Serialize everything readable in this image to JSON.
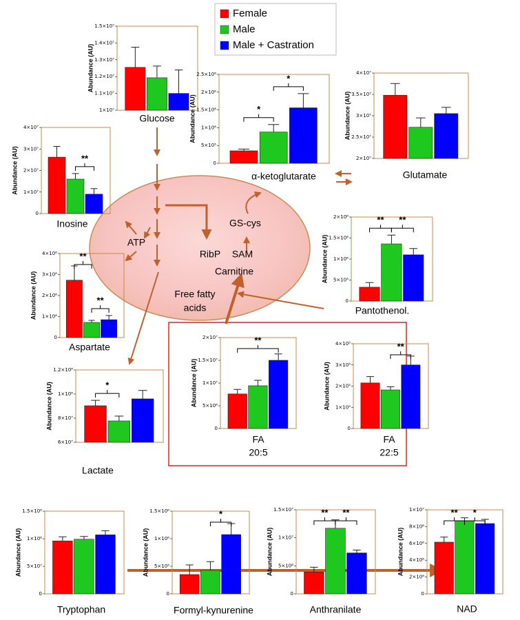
{
  "legend": [
    {
      "name": "Female",
      "color": "#ff0000"
    },
    {
      "name": "Male",
      "color": "#1ec81e"
    },
    {
      "name": "Male + Castration",
      "color": "#0000ff"
    }
  ],
  "chart_data": [
    {
      "type": "bar",
      "title": "Glucose",
      "ylabel": "Abundance (AU)",
      "values": [
        12550000,
        11930000,
        11000000
      ],
      "errors": [
        1200000,
        700000,
        1400000
      ],
      "ylim": [
        10000000,
        15000000
      ],
      "yticks": [
        {
          "value": 10000000,
          "label": "1×10⁷"
        },
        {
          "value": 11000000,
          "label": "1.1×10⁷"
        },
        {
          "value": 12000000,
          "label": "1.2×10⁷"
        },
        {
          "value": 13000000,
          "label": "1.3×10⁷"
        },
        {
          "value": 14000000,
          "label": "1.4×10⁷"
        },
        {
          "value": 15000000,
          "label": "1.5×10⁷"
        }
      ],
      "significance": []
    },
    {
      "type": "bar",
      "title": "α-ketoglutarate",
      "ylabel": "Abundance (AU)",
      "values": [
        350000,
        880000,
        1560000
      ],
      "errors": [
        50000,
        210000,
        400000
      ],
      "ylim": [
        0,
        2500000
      ],
      "yticks": [
        0,
        {
          "value": 500000,
          "label": "5×10⁵"
        },
        {
          "value": 1000000,
          "label": "1×10⁶"
        },
        {
          "value": 1500000,
          "label": "1.5×10⁶"
        },
        {
          "value": 2000000,
          "label": "2×10⁶"
        },
        {
          "value": 2500000,
          "label": "2.5×10⁶"
        }
      ],
      "significance": [
        {
          "label": "*",
          "pair": [
            0,
            1
          ]
        },
        {
          "label": "*",
          "pair": [
            1,
            2
          ]
        }
      ]
    },
    {
      "type": "bar",
      "title": "Glutamate",
      "ylabel": "Abundance (AU)",
      "values": [
        34800000,
        27300000,
        30500000
      ],
      "errors": [
        2750000,
        2200000,
        1450000
      ],
      "ylim": [
        20000000,
        40000000
      ],
      "yticks": [
        {
          "value": 20000000,
          "label": "2×10⁷"
        },
        {
          "value": 25000000,
          "label": "2.5×10⁷"
        },
        {
          "value": 30000000,
          "label": "3×10⁷"
        },
        {
          "value": 35000000,
          "label": "3.5×10⁷"
        },
        {
          "value": 40000000,
          "label": "4×10⁷"
        }
      ],
      "significance": []
    },
    {
      "type": "bar",
      "title": "Inosine",
      "ylabel": "Abundance (AU)",
      "values": [
        26200000,
        16000000,
        9000000
      ],
      "errors": [
        5000000,
        2600000,
        2600000
      ],
      "ylim": [
        0,
        40000000
      ],
      "yticks": [
        0,
        {
          "value": 10000000,
          "label": "1×10⁷"
        },
        {
          "value": 20000000,
          "label": "2×10⁷"
        },
        {
          "value": 30000000,
          "label": "3×10⁷"
        },
        {
          "value": 40000000,
          "label": "4×10⁷"
        }
      ],
      "significance": [
        {
          "label": "**",
          "pair": [
            1,
            2
          ]
        }
      ]
    },
    {
      "type": "bar",
      "title": "Pantothenol.",
      "ylabel": "Abundance (AU)",
      "values": [
        330000,
        1360000,
        1100000
      ],
      "errors": [
        110000,
        210000,
        150000
      ],
      "ylim": [
        0,
        2000000
      ],
      "yticks": [
        0,
        {
          "value": 500000,
          "label": "5×10⁵"
        },
        {
          "value": 1000000,
          "label": "1×10⁶"
        },
        {
          "value": 1500000,
          "label": "1.5×10⁶"
        },
        {
          "value": 2000000,
          "label": "2×10⁶"
        }
      ],
      "significance": [
        {
          "label": "**",
          "pair": [
            0,
            1
          ]
        },
        {
          "label": "**",
          "pair": [
            1,
            2
          ]
        }
      ]
    },
    {
      "type": "bar",
      "title": "Aspartate",
      "ylabel": "Abundance (AU)",
      "values": [
        2730000,
        720000,
        850000
      ],
      "errors": [
        680000,
        100000,
        200000
      ],
      "ylim": [
        0,
        4000000
      ],
      "yticks": [
        0,
        {
          "value": 1000000,
          "label": "1×10⁶"
        },
        {
          "value": 2000000,
          "label": "2×10⁶"
        },
        {
          "value": 3000000,
          "label": "3×10⁶"
        },
        {
          "value": 4000000,
          "label": "4×10⁶"
        }
      ],
      "significance": [
        {
          "label": "**",
          "pair": [
            0,
            1
          ]
        },
        {
          "label": "**",
          "pair": [
            1,
            2
          ]
        }
      ]
    },
    {
      "type": "bar",
      "title": "Lactate",
      "ylabel": "Abundance (AU)",
      "values": [
        90300000,
        77700000,
        96000000
      ],
      "errors": [
        4500000,
        4000000,
        7000000
      ],
      "ylim": [
        60000000,
        120000000
      ],
      "yticks": [
        {
          "value": 60000000,
          "label": "6×10⁷"
        },
        {
          "value": 80000000,
          "label": "8×10⁷"
        },
        {
          "value": 100000000,
          "label": "1×10⁸"
        },
        {
          "value": 120000000,
          "label": "1.2×10⁸"
        }
      ],
      "significance": [
        {
          "label": "*",
          "pair": [
            0,
            1
          ]
        }
      ]
    },
    {
      "type": "bar",
      "title": [
        "FA",
        "20:5"
      ],
      "ylabel": "Abundance (AU)",
      "values": [
        7600000,
        9400000,
        15000000
      ],
      "errors": [
        1000000,
        1200000,
        1400000
      ],
      "ylim": [
        0,
        20000000
      ],
      "yticks": [
        0,
        {
          "value": 5000000,
          "label": "5×10⁶"
        },
        {
          "value": 10000000,
          "label": "1×10⁷"
        },
        {
          "value": 15000000,
          "label": "1.5×10⁷"
        },
        {
          "value": 20000000,
          "label": "2×10⁷"
        }
      ],
      "significance": [
        {
          "label": "**",
          "pair": [
            0,
            2
          ]
        }
      ]
    },
    {
      "type": "bar",
      "title": [
        "FA",
        "22:5"
      ],
      "ylabel": "Abundance (AU)",
      "values": [
        215000,
        182000,
        300000
      ],
      "errors": [
        30000,
        15000,
        42000
      ],
      "ylim": [
        0,
        400000
      ],
      "yticks": [
        0,
        {
          "value": 100000,
          "label": "1×10⁵"
        },
        {
          "value": 200000,
          "label": "2×10⁵"
        },
        {
          "value": 300000,
          "label": "3×10⁵"
        },
        {
          "value": 400000,
          "label": "4×10⁵"
        }
      ],
      "significance": [
        {
          "label": "**",
          "pair": [
            1,
            2
          ]
        }
      ]
    },
    {
      "type": "bar",
      "title": "Tryptophan",
      "ylabel": "Abundance (AU)",
      "values": [
        96000000,
        99000000,
        107000000
      ],
      "errors": [
        7500000,
        5000000,
        7500000
      ],
      "ylim": [
        0,
        150000000
      ],
      "yticks": [
        0,
        {
          "value": 50000000,
          "label": "5×10⁷"
        },
        {
          "value": 100000000,
          "label": "1×10⁸"
        },
        {
          "value": 150000000,
          "label": "1.5×10⁸"
        }
      ],
      "significance": []
    },
    {
      "type": "bar",
      "title": "Formyl-kynurenine",
      "ylabel": "Abundance (AU)",
      "values": [
        350000,
        425000,
        1075000
      ],
      "errors": [
        175000,
        160000,
        200000
      ],
      "ylim": [
        0,
        1500000
      ],
      "yticks": [
        0,
        {
          "value": 500000,
          "label": "5×10⁵"
        },
        {
          "value": 1000000,
          "label": "1×10⁶"
        },
        {
          "value": 1500000,
          "label": "1.5×10⁶"
        }
      ],
      "significance": [
        {
          "label": "*",
          "pair": [
            1,
            2
          ]
        }
      ]
    },
    {
      "type": "bar",
      "title": "Anthranilate",
      "ylabel": "Abundance (AU)",
      "values": [
        3900000,
        11700000,
        7300000
      ],
      "errors": [
        850000,
        1500000,
        500000
      ],
      "ylim": [
        0,
        15000000
      ],
      "yticks": [
        0,
        {
          "value": 5000000,
          "label": "5×10⁶"
        },
        {
          "value": 10000000,
          "label": "1×10⁷"
        },
        {
          "value": 15000000,
          "label": "1.5×10⁷"
        }
      ],
      "significance": [
        {
          "label": "**",
          "pair": [
            0,
            1
          ]
        },
        {
          "label": "**",
          "pair": [
            1,
            2
          ]
        }
      ]
    },
    {
      "type": "bar",
      "title": "NAD",
      "ylabel": "Abundance (AU)",
      "values": [
        6150000,
        8700000,
        8360000
      ],
      "errors": [
        600000,
        350000,
        500000
      ],
      "ylim": [
        0,
        10000000
      ],
      "yticks": [
        0,
        {
          "value": 2000000,
          "label": "2×10⁶"
        },
        {
          "value": 4000000,
          "label": "4×10⁶"
        },
        {
          "value": 6000000,
          "label": "6×10⁶"
        },
        {
          "value": 8000000,
          "label": "8×10⁶"
        },
        {
          "value": 10000000,
          "label": "1×10⁷"
        }
      ],
      "significance": [
        {
          "label": "**",
          "pair": [
            0,
            1
          ]
        },
        {
          "label": "*",
          "pair": [
            1,
            2
          ]
        }
      ]
    }
  ],
  "diagram": {
    "labels": [
      "ATP",
      "GS-cys",
      "RibP",
      "SAM",
      "Carnitine",
      "Free fatty",
      "acids"
    ]
  }
}
